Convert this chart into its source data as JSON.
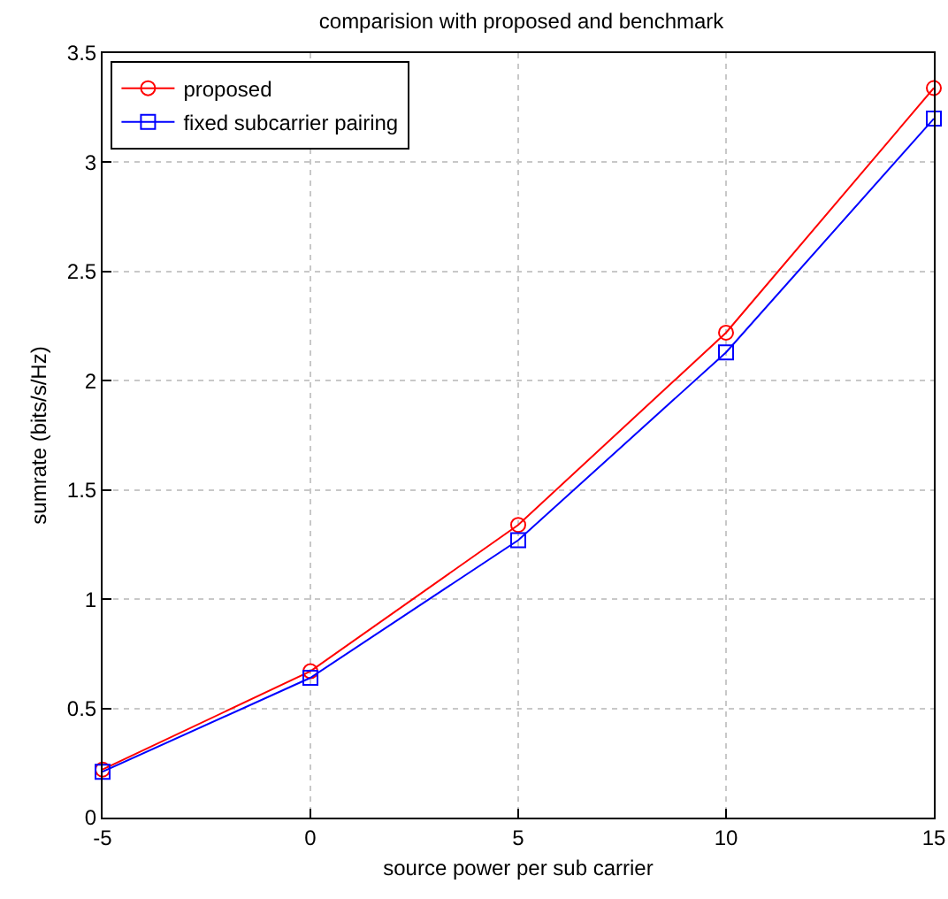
{
  "chart_data": {
    "type": "line",
    "title": "comparision with proposed and benchmark",
    "xlabel": "source power per sub carrier",
    "ylabel": "sumrate (bits/s/Hz)",
    "x": [
      -5,
      0,
      5,
      10,
      15
    ],
    "series": [
      {
        "name": "proposed",
        "color": "#ff0000",
        "marker": "circle",
        "values": [
          0.22,
          0.67,
          1.34,
          2.22,
          3.34
        ]
      },
      {
        "name": "fixed subcarrier pairing",
        "color": "#0000ff",
        "marker": "square",
        "values": [
          0.21,
          0.64,
          1.27,
          2.13,
          3.2
        ]
      }
    ],
    "xlim": [
      -5,
      15
    ],
    "xticks": [
      -5,
      0,
      5,
      10,
      15
    ],
    "ylim": [
      0,
      3.5
    ],
    "yticks": [
      0,
      0.5,
      1,
      1.5,
      2,
      2.5,
      3,
      3.5
    ],
    "grid": true,
    "legend": "top left",
    "line_style": "solid"
  }
}
